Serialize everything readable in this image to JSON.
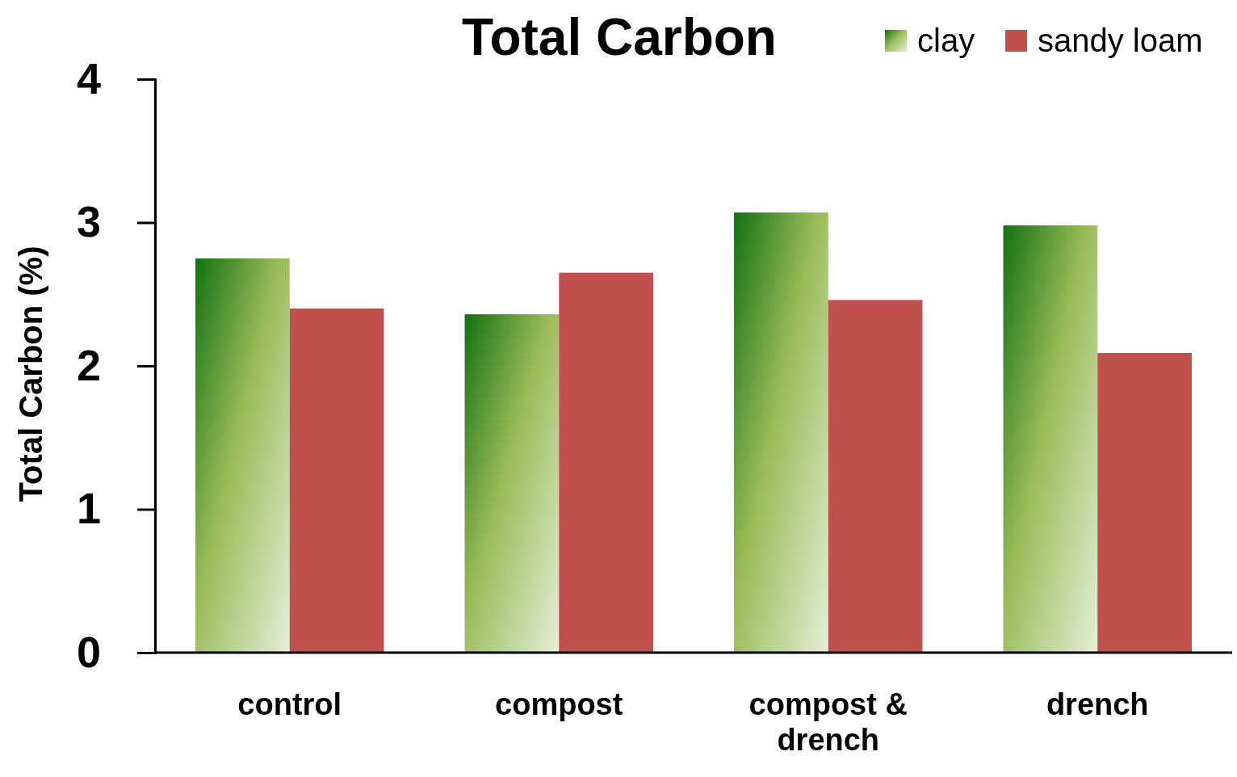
{
  "chart_data": {
    "type": "bar",
    "title": "Total Carbon",
    "ylabel": "Total Carbon (%)",
    "categories": [
      "control",
      "compost",
      "compost & drench",
      "drench"
    ],
    "series": [
      {
        "name": "clay",
        "color": "#9bbb59",
        "values": [
          2.75,
          2.36,
          3.07,
          2.98
        ]
      },
      {
        "name": "sandy loam",
        "color": "#c0504d",
        "values": [
          2.4,
          2.65,
          2.46,
          2.09
        ]
      }
    ],
    "ylim": [
      0,
      4
    ],
    "yticks": [
      0,
      1,
      2,
      3,
      4
    ],
    "grid": false,
    "legend": "top right"
  }
}
